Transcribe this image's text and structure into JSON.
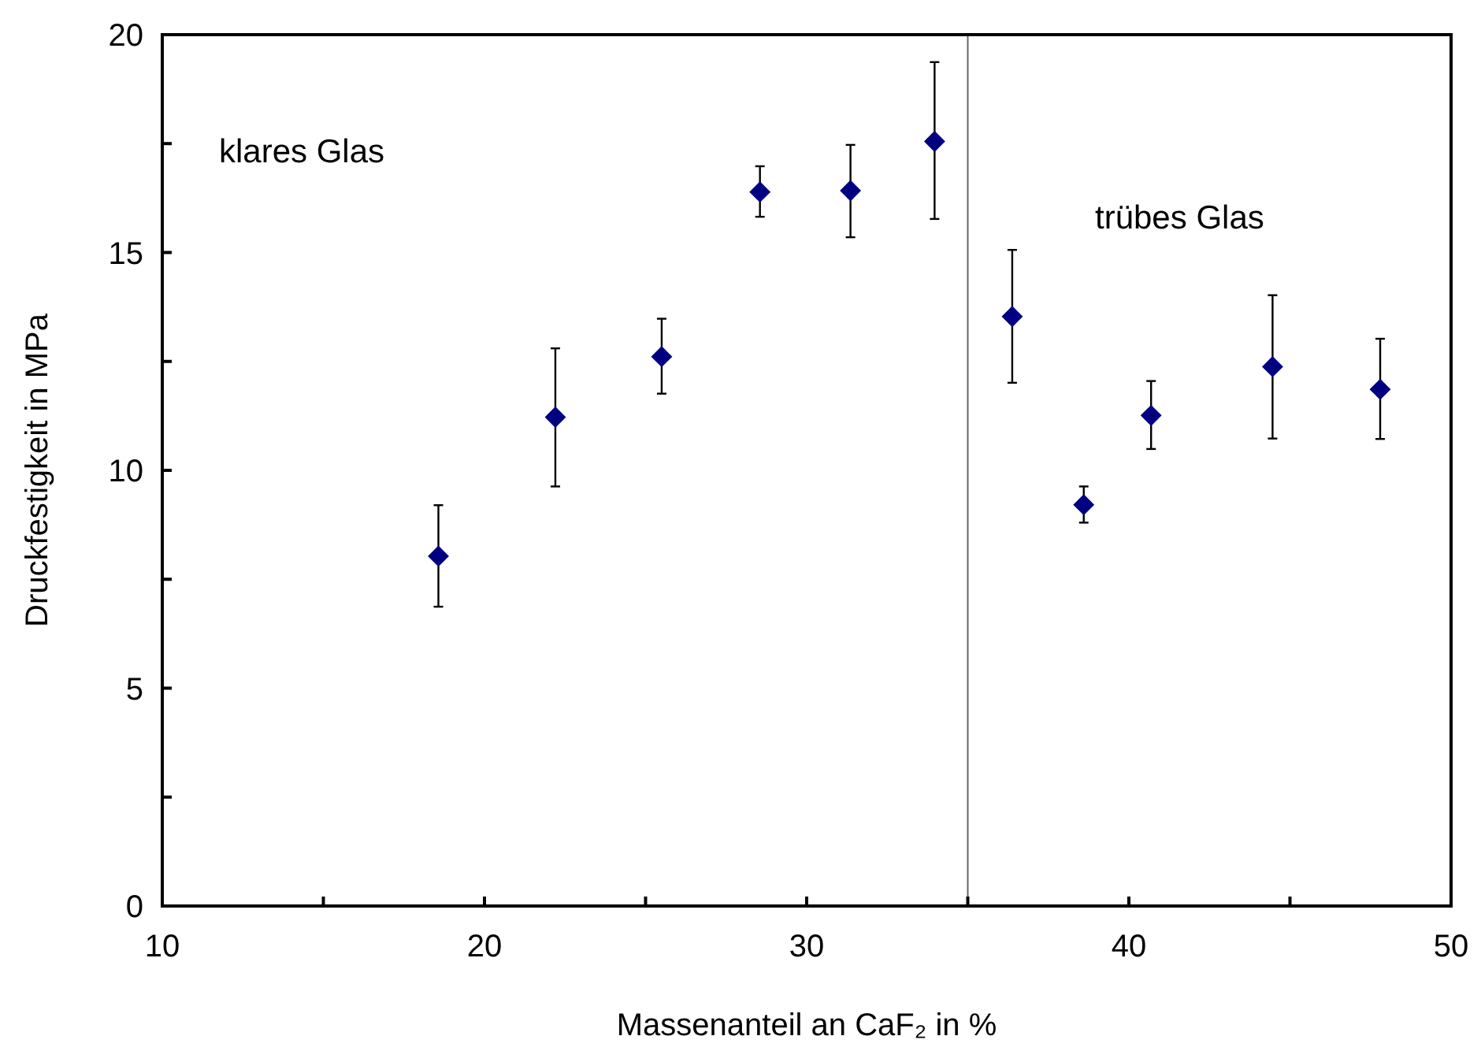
{
  "chart_data": {
    "type": "scatter",
    "xlabel": "Massenanteil an CaF₂ in %",
    "ylabel": "Druckfestigkeit in MPa",
    "x": [
      18.57,
      22.2,
      25.5,
      28.55,
      31.36,
      33.97,
      36.38,
      38.6,
      40.69,
      44.46,
      47.8
    ],
    "series": [
      {
        "color": "#000080",
        "values": [
          8.03,
          11.22,
          12.61,
          16.39,
          16.42,
          17.55,
          13.53,
          9.21,
          11.26,
          12.38,
          11.86
        ],
        "errors": [
          [
            6.87,
            9.2
          ],
          [
            9.63,
            12.8
          ],
          [
            11.76,
            13.48
          ],
          [
            15.82,
            16.98
          ],
          [
            15.35,
            17.47
          ],
          [
            15.77,
            19.37
          ],
          [
            12.01,
            15.06
          ],
          [
            8.8,
            9.63
          ],
          [
            10.49,
            12.05
          ],
          [
            10.73,
            14.02
          ],
          [
            10.72,
            13.02
          ]
        ]
      }
    ],
    "marker": "diamond",
    "xlim": [
      10,
      50
    ],
    "xticks": [
      10,
      {
        "value": 15,
        "label": null
      },
      20,
      {
        "value": 25,
        "label": null
      },
      30,
      {
        "value": 35,
        "label": null
      },
      40,
      {
        "value": 45,
        "label": null
      },
      50
    ],
    "ylim": [
      0,
      20
    ],
    "yticks": [
      0,
      {
        "value": 2.5,
        "label": null
      },
      5,
      {
        "value": 7.5,
        "label": null
      },
      10,
      {
        "value": 12.5,
        "label": null
      },
      15,
      {
        "value": 17.5,
        "label": null
      },
      20
    ],
    "ref_lines": [
      {
        "axis": "x",
        "value": 35,
        "color": "#666666"
      }
    ],
    "annotations": [
      "klares Glas",
      "trübes Glas"
    ]
  }
}
